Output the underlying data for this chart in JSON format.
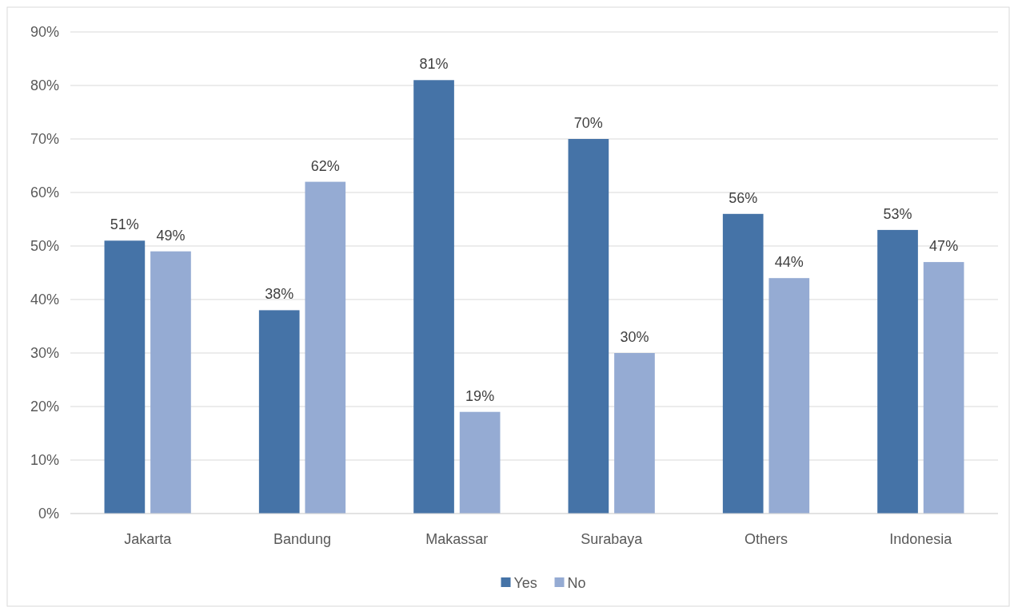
{
  "chart_data": {
    "type": "bar",
    "categories": [
      "Jakarta",
      "Bandung",
      "Makassar",
      "Surabaya",
      "Others",
      "Indonesia"
    ],
    "series": [
      {
        "name": "Yes",
        "color": "#4573a7",
        "values": [
          51,
          38,
          81,
          70,
          56,
          53
        ],
        "value_labels": [
          "51%",
          "38%",
          "81%",
          "70%",
          "56%",
          "53%"
        ]
      },
      {
        "name": "No",
        "color": "#95abd3",
        "values": [
          49,
          62,
          19,
          30,
          44,
          47
        ],
        "value_labels": [
          "49%",
          "62%",
          "19%",
          "30%",
          "44%",
          "47%"
        ]
      }
    ],
    "ylim": [
      0,
      90
    ],
    "yticks": [
      {
        "value": 0,
        "label": "0%"
      },
      {
        "value": 10,
        "label": "10%"
      },
      {
        "value": 20,
        "label": "20%"
      },
      {
        "value": 30,
        "label": "30%"
      },
      {
        "value": 40,
        "label": "40%"
      },
      {
        "value": 50,
        "label": "50%"
      },
      {
        "value": 60,
        "label": "60%"
      },
      {
        "value": 70,
        "label": "70%"
      },
      {
        "value": 80,
        "label": "80%"
      },
      {
        "value": 90,
        "label": "90%"
      }
    ],
    "grid": "y",
    "legend": "bottom"
  }
}
